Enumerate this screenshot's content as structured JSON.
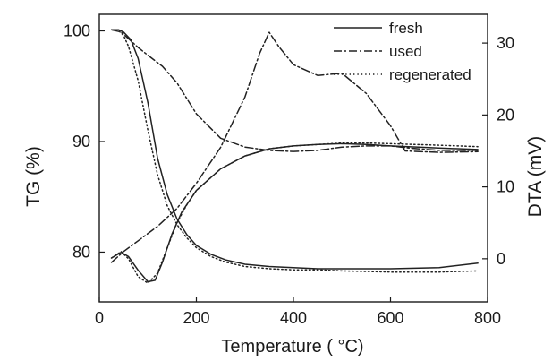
{
  "chart_data": {
    "type": "line",
    "xlabel": "Temperature ( °C)",
    "ylabel_left": "TG (%)",
    "ylabel_right": "DTA (mV)",
    "xlim": [
      0,
      800
    ],
    "ylim_left": [
      75.5,
      101.5
    ],
    "ylim_right": [
      -6,
      34
    ],
    "x_ticks": [
      0,
      200,
      400,
      600,
      800
    ],
    "y_left_ticks": [
      80,
      90,
      100
    ],
    "y_right_ticks": [
      0,
      10,
      20,
      30
    ],
    "grid": false,
    "legend_position": "top-right",
    "series": [
      {
        "name": "fresh",
        "line_style": "solid",
        "color": "#222222",
        "tg": {
          "x": [
            25,
            40,
            50,
            65,
            80,
            100,
            120,
            140,
            160,
            180,
            200,
            230,
            260,
            300,
            350,
            400,
            450,
            500,
            600,
            700,
            780
          ],
          "y": [
            100.1,
            100.1,
            99.9,
            99.2,
            97.5,
            93.5,
            88.5,
            85.2,
            83.0,
            81.6,
            80.6,
            79.8,
            79.3,
            78.9,
            78.7,
            78.6,
            78.5,
            78.5,
            78.5,
            78.6,
            79.0
          ]
        },
        "dta": {
          "x": [
            25,
            45,
            60,
            80,
            100,
            115,
            130,
            150,
            170,
            200,
            250,
            300,
            350,
            400,
            450,
            500,
            550,
            600,
            700,
            780
          ],
          "y": [
            0.1,
            0.9,
            0.3,
            -1.6,
            -3.2,
            -3.0,
            -0.5,
            3.5,
            6.5,
            9.5,
            12.5,
            14.3,
            15.3,
            15.7,
            15.9,
            16.0,
            15.9,
            15.7,
            15.4,
            15.2
          ]
        }
      },
      {
        "name": "used",
        "line_style": "dashdot",
        "color": "#222222",
        "tg": {
          "x": [
            25,
            45,
            60,
            80,
            100,
            130,
            160,
            200,
            250,
            300,
            350,
            400,
            450,
            500,
            550,
            600,
            640,
            700,
            780
          ],
          "y": [
            100.1,
            99.9,
            99.3,
            98.5,
            97.8,
            96.8,
            95.3,
            92.5,
            90.3,
            89.5,
            89.2,
            89.1,
            89.2,
            89.5,
            89.6,
            89.6,
            89.4,
            89.2,
            89.2
          ]
        },
        "dta": {
          "x": [
            25,
            50,
            80,
            120,
            160,
            200,
            250,
            300,
            330,
            350,
            370,
            400,
            450,
            500,
            550,
            600,
            630,
            700,
            780
          ],
          "y": [
            -0.5,
            1.0,
            2.5,
            4.5,
            7.0,
            10.5,
            15.5,
            22.5,
            28.5,
            31.5,
            29.5,
            27.0,
            25.5,
            25.8,
            23.0,
            18.5,
            15.0,
            14.8,
            14.9
          ]
        }
      },
      {
        "name": "regenerated",
        "line_style": "dotted",
        "color": "#222222",
        "tg": {
          "x": [
            25,
            40,
            50,
            60,
            80,
            100,
            120,
            140,
            160,
            180,
            200,
            230,
            260,
            300,
            350,
            400,
            450,
            500,
            600,
            700,
            780
          ],
          "y": [
            100.1,
            100.0,
            99.6,
            98.6,
            95.5,
            91.0,
            87.0,
            84.2,
            82.5,
            81.3,
            80.4,
            79.6,
            79.1,
            78.7,
            78.5,
            78.4,
            78.4,
            78.3,
            78.2,
            78.2,
            78.3
          ]
        },
        "dta": {
          "x": [
            25,
            45,
            60,
            80,
            100,
            120,
            140,
            160,
            180,
            200,
            250,
            300,
            350,
            400,
            450,
            500,
            550,
            600,
            700,
            780
          ],
          "y": [
            0.1,
            1.0,
            0.0,
            -2.5,
            -3.4,
            -2.0,
            1.5,
            5.0,
            7.5,
            9.5,
            12.5,
            14.3,
            15.3,
            15.7,
            15.9,
            16.1,
            16.1,
            16.0,
            15.8,
            15.6
          ]
        }
      }
    ]
  }
}
